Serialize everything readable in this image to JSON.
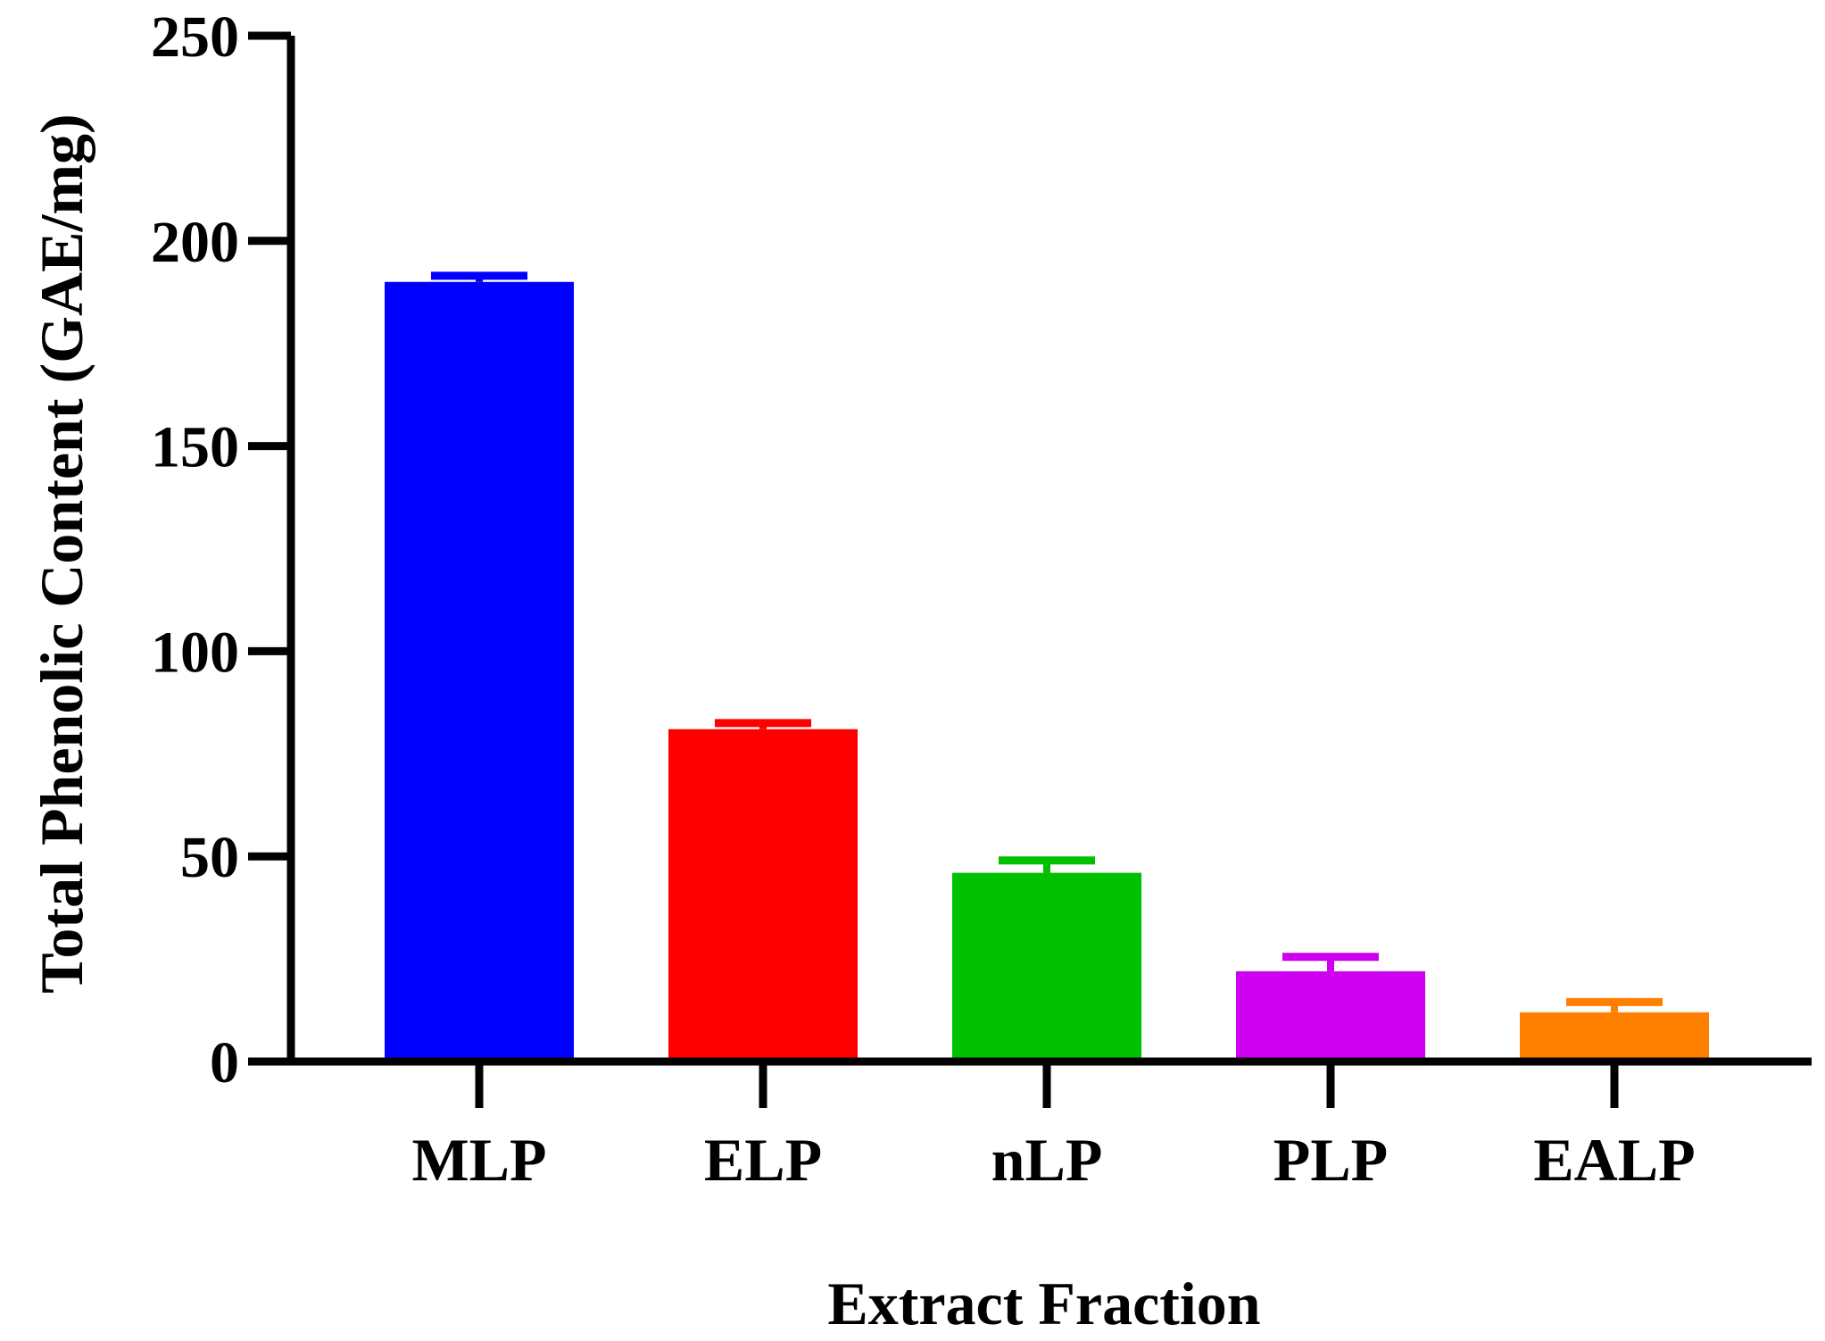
{
  "chart_data": {
    "type": "bar",
    "title": "",
    "xlabel": "Extract Fraction",
    "ylabel": "Total Phenolic Content (GAE/mg)",
    "categories": [
      "MLP",
      "ELP",
      "nLP",
      "PLP",
      "EALP"
    ],
    "values": [
      190,
      81,
      46,
      22,
      12
    ],
    "errors": [
      1.5,
      1.5,
      3,
      3.5,
      2.5
    ],
    "colors": [
      "#0000ff",
      "#ff0000",
      "#00c000",
      "#cc00ee",
      "#ff8000"
    ],
    "ylim": [
      0,
      250
    ],
    "yticks": [
      "0",
      "50",
      "100",
      "150",
      "200",
      "250"
    ],
    "grid": false,
    "legend": "none"
  }
}
